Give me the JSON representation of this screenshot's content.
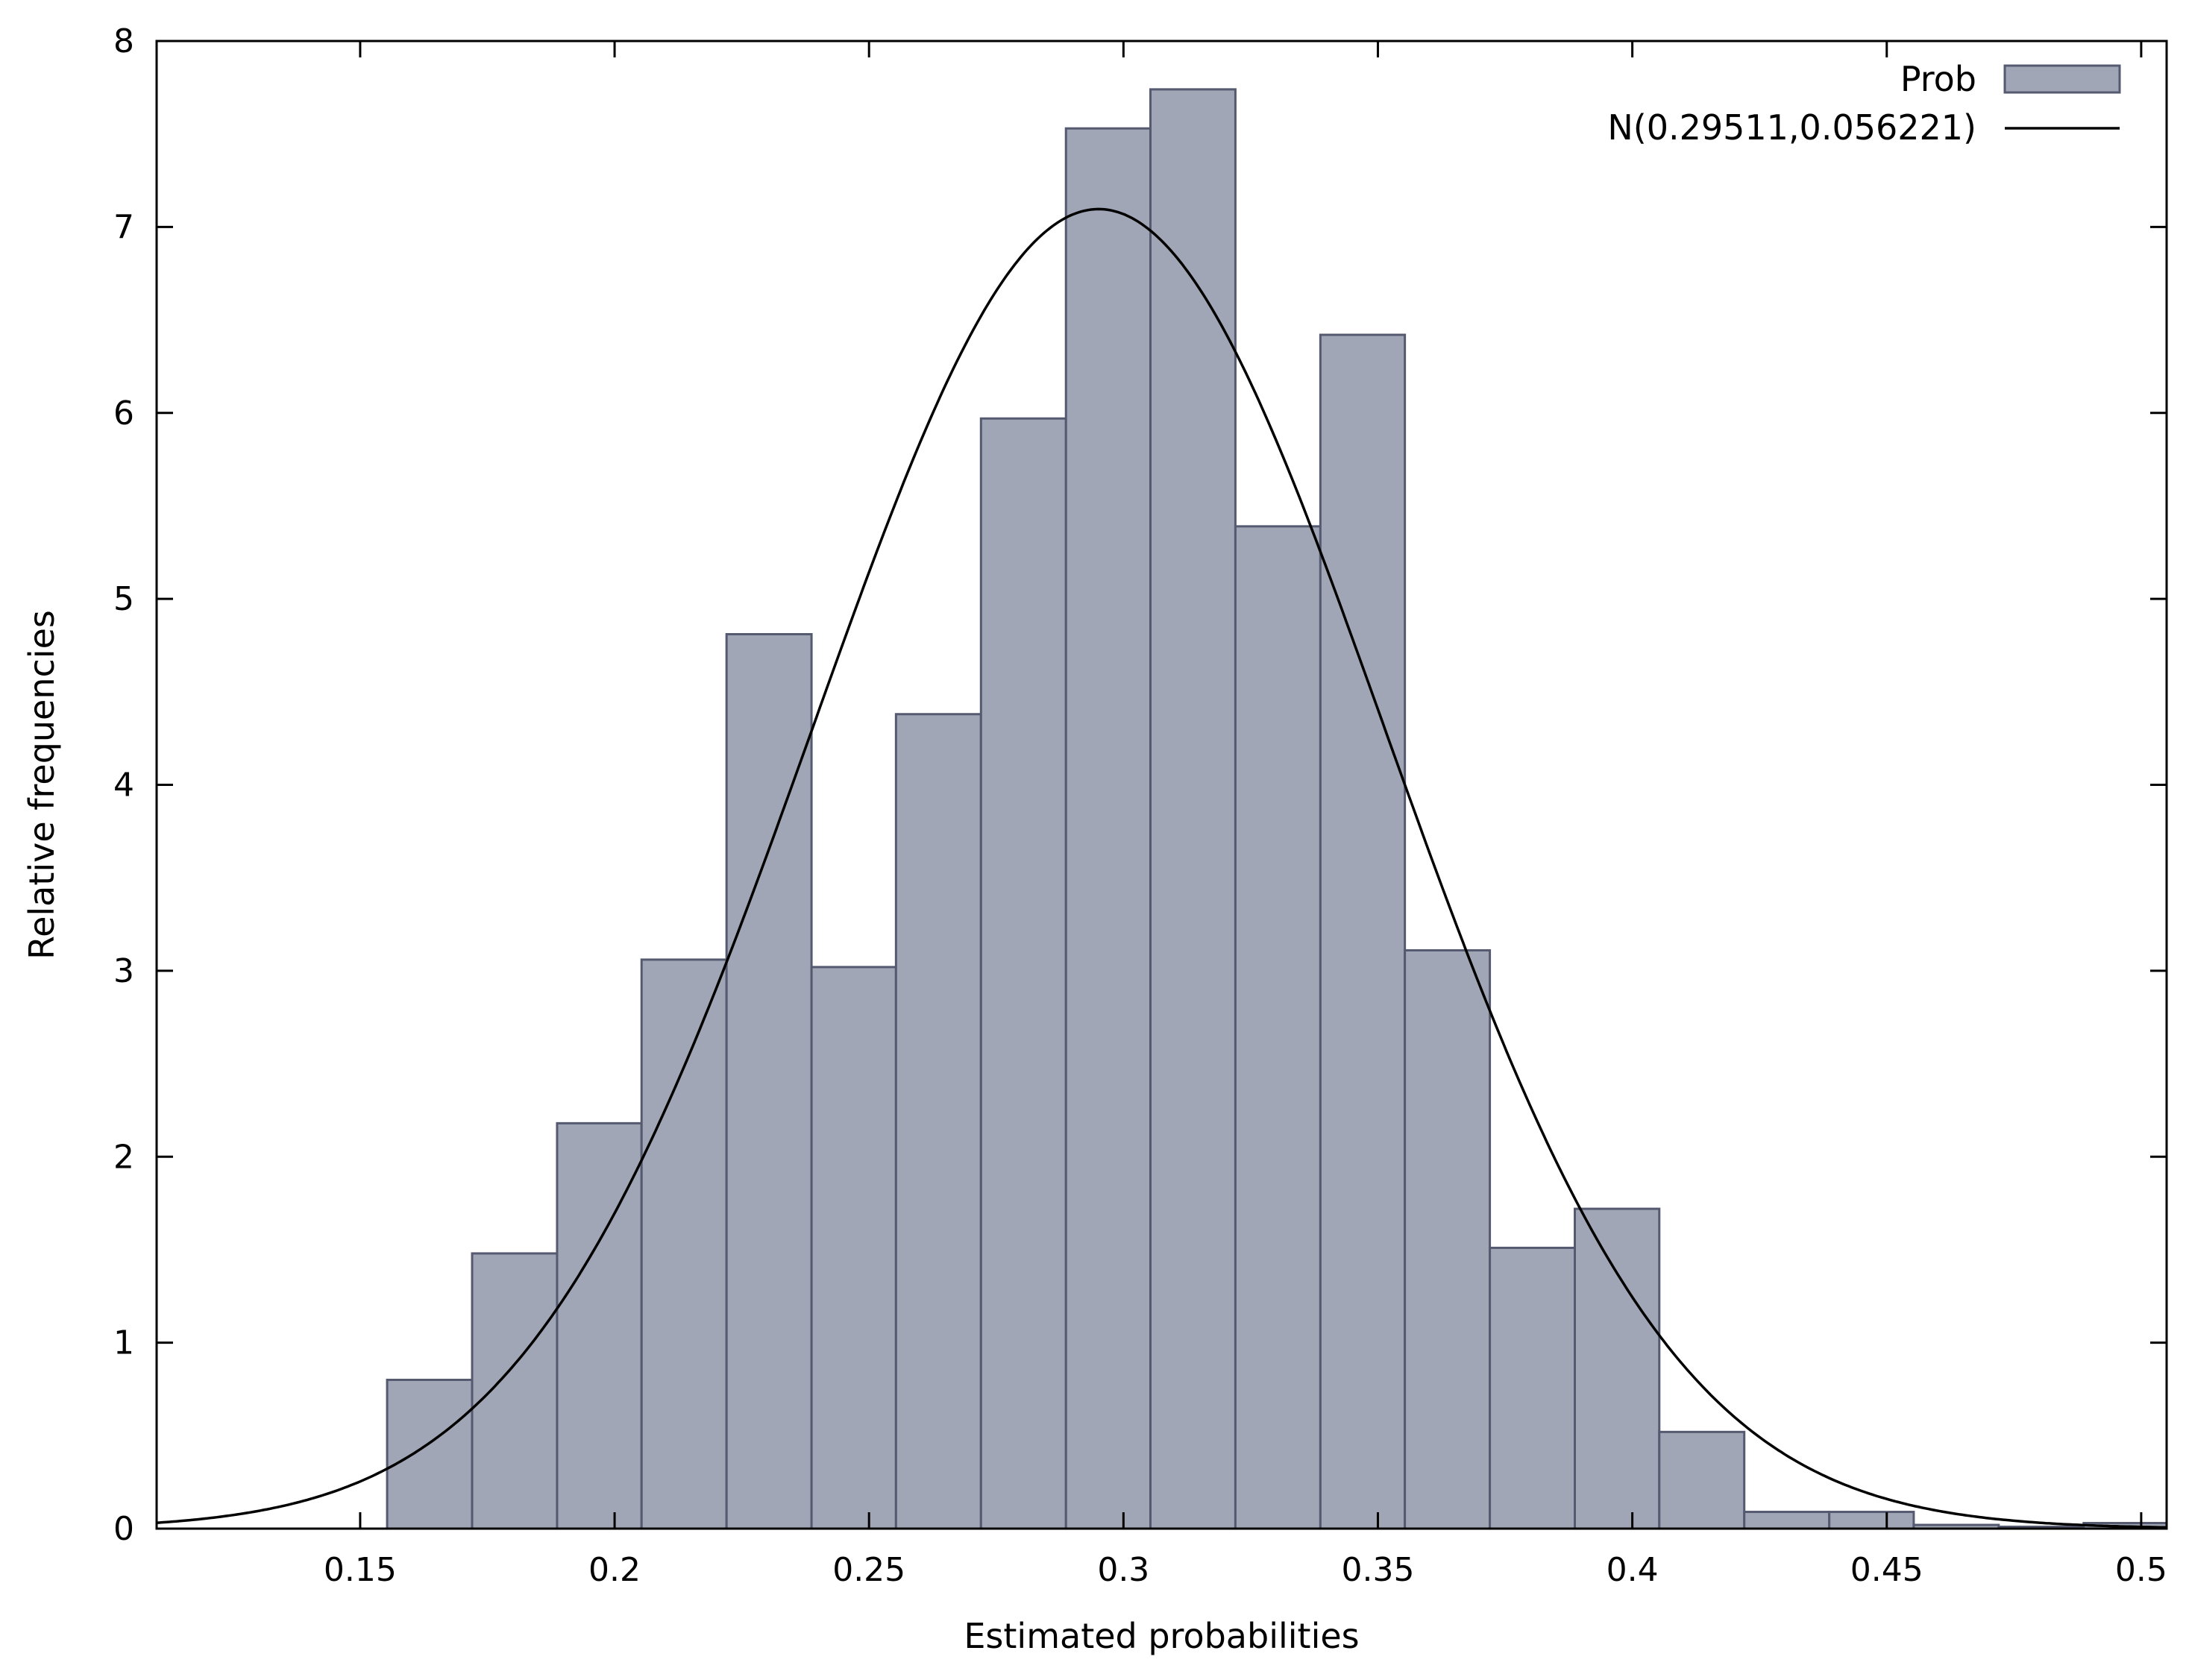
{
  "chart_data": {
    "type": "bar",
    "xlabel": "Estimated probabilities",
    "ylabel": "Relative frequencies",
    "xlim": [
      0.11,
      0.505
    ],
    "ylim": [
      0,
      8
    ],
    "x_ticks": [
      "0.15",
      "0.2",
      "0.25",
      "0.3",
      "0.35",
      "0.4",
      "0.45",
      "0.5"
    ],
    "y_ticks": [
      "0",
      "1",
      "2",
      "3",
      "4",
      "5",
      "6",
      "7",
      "8"
    ],
    "bin_width": 0.01667,
    "bins": [
      {
        "x0": 0.1553,
        "x1": 0.172,
        "value": 0.8
      },
      {
        "x0": 0.172,
        "x1": 0.1887,
        "value": 1.48
      },
      {
        "x0": 0.1887,
        "x1": 0.2053,
        "value": 2.18
      },
      {
        "x0": 0.2053,
        "x1": 0.222,
        "value": 3.06
      },
      {
        "x0": 0.222,
        "x1": 0.2387,
        "value": 4.81
      },
      {
        "x0": 0.2387,
        "x1": 0.2553,
        "value": 3.02
      },
      {
        "x0": 0.2553,
        "x1": 0.272,
        "value": 4.38
      },
      {
        "x0": 0.272,
        "x1": 0.2887,
        "value": 5.97
      },
      {
        "x0": 0.2887,
        "x1": 0.3053,
        "value": 7.53
      },
      {
        "x0": 0.3053,
        "x1": 0.322,
        "value": 7.74
      },
      {
        "x0": 0.322,
        "x1": 0.3387,
        "value": 5.39
      },
      {
        "x0": 0.3387,
        "x1": 0.3553,
        "value": 6.42
      },
      {
        "x0": 0.3553,
        "x1": 0.372,
        "value": 3.11
      },
      {
        "x0": 0.372,
        "x1": 0.3887,
        "value": 1.51
      },
      {
        "x0": 0.3887,
        "x1": 0.4053,
        "value": 1.72
      },
      {
        "x0": 0.4053,
        "x1": 0.422,
        "value": 0.52
      },
      {
        "x0": 0.422,
        "x1": 0.4387,
        "value": 0.09
      },
      {
        "x0": 0.4387,
        "x1": 0.4553,
        "value": 0.09
      },
      {
        "x0": 0.4553,
        "x1": 0.472,
        "value": 0.02
      },
      {
        "x0": 0.472,
        "x1": 0.4887,
        "value": 0.01
      },
      {
        "x0": 0.4887,
        "x1": 0.5053,
        "value": 0.03
      }
    ],
    "normal_curve": {
      "mean": 0.29511,
      "sd": 0.056221
    },
    "legend": {
      "position": "top-right",
      "entries": [
        {
          "label": "Prob",
          "kind": "box",
          "color": "#a0a6b5",
          "edge": "#555a70"
        },
        {
          "label": "N(0.29511,0.056221)",
          "kind": "line",
          "color": "#000000"
        }
      ]
    },
    "grid": false,
    "colors": {
      "bar_fill": "#a0a6b5",
      "bar_edge": "#555a70",
      "curve": "#000000",
      "frame": "#000000"
    }
  }
}
